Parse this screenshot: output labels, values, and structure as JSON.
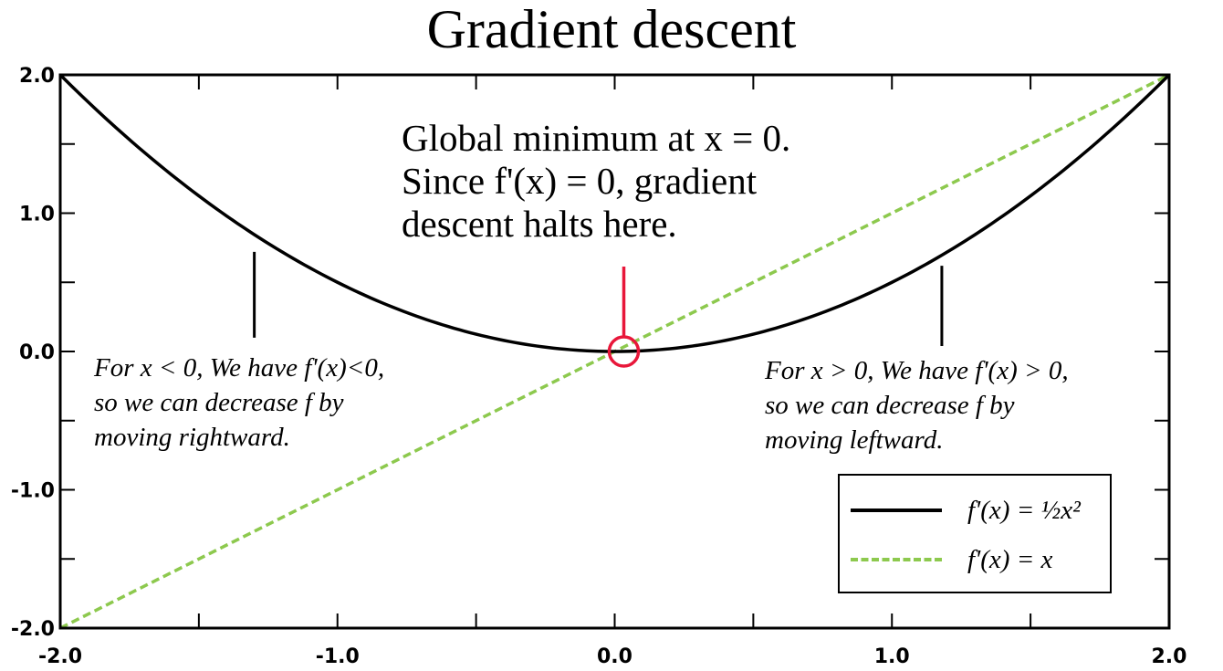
{
  "title": "Gradient descent",
  "annotations": {
    "center": [
      "Global minimum at x = 0.",
      "Since  f'(x) = 0, gradient",
      "descent halts here."
    ],
    "left": [
      "For x < 0, We have f'(x)<0,",
      "so we can decrease f  by",
      "moving rightward."
    ],
    "right": [
      "For  x > 0, We have f'(x) > 0,",
      "so we can decrease f  by",
      "moving  leftward."
    ]
  },
  "legend": {
    "items": [
      "f'(x) = ½x²",
      "f'(x) = x"
    ]
  },
  "colors": {
    "curve": "#000000",
    "line": "#8dc94e",
    "marker": "#e8173a"
  },
  "chart_data": {
    "type": "line",
    "title": "Gradient descent",
    "xlabel": "",
    "ylabel": "",
    "xlim": [
      -2.0,
      2.0
    ],
    "ylim": [
      -2.0,
      2.0
    ],
    "x_ticks": [
      "-2.0",
      "-1.0",
      "0.0",
      "1.0",
      "2.0"
    ],
    "y_ticks": [
      "2.0",
      "1.0",
      "0.0",
      "-1.0",
      "-2.0"
    ],
    "grid": false,
    "legend_position": "bottom-right",
    "series": [
      {
        "name": "f'(x) = ½x²",
        "x": [
          -2.0,
          -1.5,
          -1.0,
          -0.5,
          0.0,
          0.5,
          1.0,
          1.5,
          2.0
        ],
        "y": [
          2.0,
          1.125,
          0.5,
          0.125,
          0.0,
          0.125,
          0.5,
          1.125,
          2.0
        ]
      },
      {
        "name": "f'(x) = x",
        "x": [
          -2.0,
          2.0
        ],
        "y": [
          -2.0,
          2.0
        ]
      }
    ],
    "marker": {
      "x": 0.0,
      "y": 0.0
    },
    "pointers": [
      {
        "x": -1.3,
        "y_from": 0.1,
        "y_to": 0.72
      },
      {
        "x": 1.18,
        "y_from": 0.04,
        "y_to": 0.62
      }
    ]
  }
}
